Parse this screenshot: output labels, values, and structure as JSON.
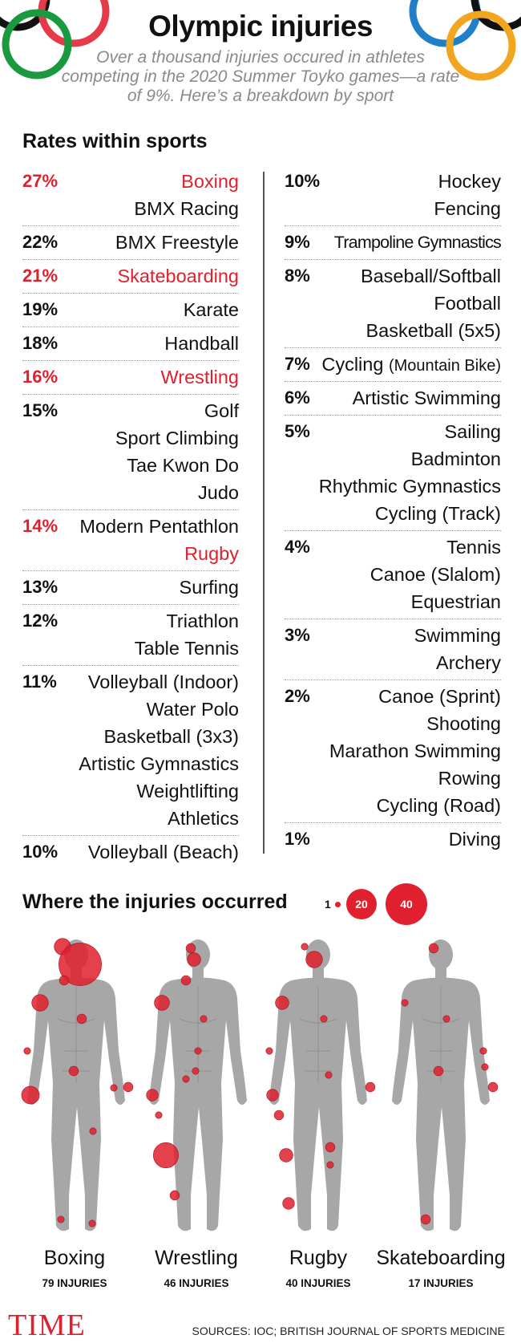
{
  "title": "Olympic injuries",
  "subtitle": "Over a thousand injuries occured in athletes competing in the 2020 Summer Toyko games—a rate of 9%. Here’s a breakdown by sport",
  "section1": "Rates within sports",
  "section2": "Where the injuries occurred",
  "colors": {
    "red": "#e0202e",
    "figure": "#a7a7a7",
    "text": "#111111",
    "subtitle": "#8a8a8a",
    "ring_black": "#111111",
    "ring_red": "#e63a4a",
    "ring_green": "#1a9a3e",
    "ring_blue": "#1f7fc7",
    "ring_yellow": "#f2a51f"
  },
  "rates_left": [
    {
      "pct": "27%",
      "sports": [
        "Boxing",
        "BMX Racing"
      ],
      "red_pct": true,
      "red_sports": [
        true,
        false
      ]
    },
    {
      "pct": "22%",
      "sports": [
        "BMX Freestyle"
      ],
      "red_pct": false,
      "red_sports": [
        false
      ]
    },
    {
      "pct": "21%",
      "sports": [
        "Skateboarding"
      ],
      "red_pct": true,
      "red_sports": [
        true
      ]
    },
    {
      "pct": "19%",
      "sports": [
        "Karate"
      ],
      "red_pct": false,
      "red_sports": [
        false
      ]
    },
    {
      "pct": "18%",
      "sports": [
        "Handball"
      ],
      "red_pct": false,
      "red_sports": [
        false
      ]
    },
    {
      "pct": "16%",
      "sports": [
        "Wrestling"
      ],
      "red_pct": true,
      "red_sports": [
        true
      ]
    },
    {
      "pct": "15%",
      "sports": [
        "Golf",
        "Sport Climbing",
        "Tae Kwon Do",
        "Judo"
      ],
      "red_pct": false,
      "red_sports": [
        false,
        false,
        false,
        false
      ]
    },
    {
      "pct": "14%",
      "sports": [
        "Modern Pentathlon",
        "Rugby"
      ],
      "red_pct": true,
      "red_sports": [
        false,
        true
      ]
    },
    {
      "pct": "13%",
      "sports": [
        "Surfing"
      ],
      "red_pct": false,
      "red_sports": [
        false
      ]
    },
    {
      "pct": "12%",
      "sports": [
        "Triathlon",
        "Table Tennis"
      ],
      "red_pct": false,
      "red_sports": [
        false,
        false
      ]
    },
    {
      "pct": "11%",
      "sports": [
        "Volleyball (Indoor)",
        "Water Polo",
        "Basketball (3x3)",
        "Artistic Gymnastics",
        "Weightlifting",
        "Athletics"
      ],
      "red_pct": false,
      "red_sports": [
        false,
        false,
        false,
        false,
        false,
        false
      ]
    },
    {
      "pct": "10%",
      "sports": [
        "Volleyball (Beach)"
      ],
      "red_pct": false,
      "red_sports": [
        false
      ]
    }
  ],
  "rates_right": [
    {
      "pct": "10%",
      "sports": [
        "Hockey",
        "Fencing"
      ]
    },
    {
      "pct": "9%",
      "sports": [
        "Trampoline Gymnastics"
      ]
    },
    {
      "pct": "8%",
      "sports": [
        "Baseball/Softball",
        "Football",
        "Basketball (5x5)"
      ]
    },
    {
      "pct": "7%",
      "sports": [
        "Cycling (Mountain Bike)"
      ]
    },
    {
      "pct": "6%",
      "sports": [
        "Artistic Swimming"
      ]
    },
    {
      "pct": "5%",
      "sports": [
        "Sailing",
        "Badminton",
        "Rhythmic Gymnastics",
        "Cycling (Track)"
      ]
    },
    {
      "pct": "4%",
      "sports": [
        "Tennis",
        "Canoe (Slalom)",
        "Equestrian"
      ]
    },
    {
      "pct": "3%",
      "sports": [
        "Swimming",
        "Archery"
      ]
    },
    {
      "pct": "2%",
      "sports": [
        "Canoe (Sprint)",
        "Shooting",
        "Marathon Swimming",
        "Rowing",
        "Cycling (Road)"
      ]
    },
    {
      "pct": "1%",
      "sports": [
        "Diving"
      ]
    }
  ],
  "legend": {
    "values": [
      "1",
      "20",
      "40"
    ]
  },
  "figures": [
    {
      "sport": "Boxing",
      "count": "79 INJURIES",
      "injuries": [
        {
          "part": "head top",
          "n": 6
        },
        {
          "part": "face/head",
          "n": 40
        },
        {
          "part": "neck",
          "n": 2
        },
        {
          "part": "right shoulder",
          "n": 6
        },
        {
          "part": "chest",
          "n": 2
        },
        {
          "part": "right elbow",
          "n": 1
        },
        {
          "part": "abdomen",
          "n": 2
        },
        {
          "part": "left hand",
          "n": 2
        },
        {
          "part": "left wrist",
          "n": 1
        },
        {
          "part": "right hand",
          "n": 7
        },
        {
          "part": "left thigh",
          "n": 1
        },
        {
          "part": "right foot",
          "n": 1
        },
        {
          "part": "left foot",
          "n": 1
        }
      ]
    },
    {
      "sport": "Wrestling",
      "count": "46 INJURIES",
      "injuries": [
        {
          "part": "head",
          "n": 2
        },
        {
          "part": "face",
          "n": 4
        },
        {
          "part": "neck",
          "n": 2
        },
        {
          "part": "right shoulder",
          "n": 5
        },
        {
          "part": "chest",
          "n": 1
        },
        {
          "part": "right hand",
          "n": 3
        },
        {
          "part": "abdomen",
          "n": 1
        },
        {
          "part": "hip",
          "n": 1
        },
        {
          "part": "right thigh",
          "n": 1
        },
        {
          "part": "right knee",
          "n": 14
        },
        {
          "part": "right shin",
          "n": 2
        },
        {
          "part": "left ankle",
          "n": 1
        }
      ]
    },
    {
      "sport": "Rugby",
      "count": "40 INJURIES",
      "injuries": [
        {
          "part": "head top",
          "n": 1
        },
        {
          "part": "face",
          "n": 6
        },
        {
          "part": "right shoulder",
          "n": 4
        },
        {
          "part": "chest",
          "n": 1
        },
        {
          "part": "right elbow",
          "n": 1
        },
        {
          "part": "left hip",
          "n": 1
        },
        {
          "part": "right hand",
          "n": 3
        },
        {
          "part": "left hand",
          "n": 2
        },
        {
          "part": "right thigh",
          "n": 2
        },
        {
          "part": "right knee",
          "n": 4
        },
        {
          "part": "left shin",
          "n": 1
        },
        {
          "part": "left knee",
          "n": 2
        },
        {
          "part": "right ankle",
          "n": 3
        }
      ]
    },
    {
      "sport": "Skateboarding",
      "count": "17 INJURIES",
      "injuries": [
        {
          "part": "head",
          "n": 2
        },
        {
          "part": "right shoulder",
          "n": 1
        },
        {
          "part": "chest",
          "n": 1
        },
        {
          "part": "left elbow",
          "n": 1
        },
        {
          "part": "left forearm",
          "n": 1
        },
        {
          "part": "left hand",
          "n": 2
        },
        {
          "part": "abdomen",
          "n": 2
        },
        {
          "part": "right foot",
          "n": 2
        }
      ]
    }
  ],
  "logo": "TIME",
  "sources": "SOURCES: IOC; BRITISH JOURNAL OF SPORTS MEDICINE"
}
